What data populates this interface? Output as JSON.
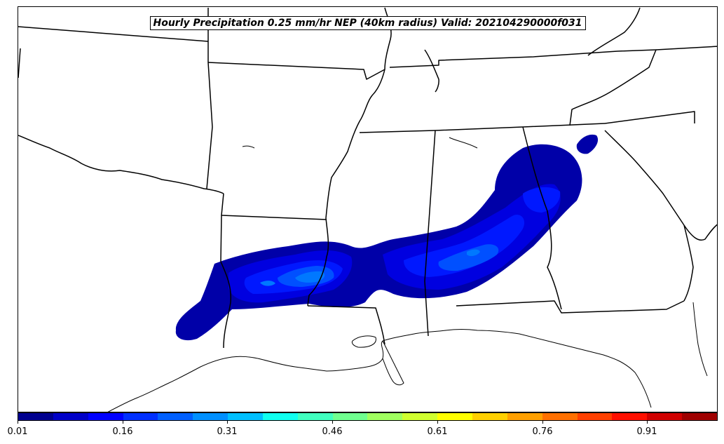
{
  "title": "Hourly Precipitation 0.25 mm/hr NEP (40km radius) Valid: 202104290000f031",
  "colorbar": {
    "colors": [
      "#00008f",
      "#0000c8",
      "#0000ff",
      "#0030ff",
      "#0060ff",
      "#0090ff",
      "#00c0ff",
      "#10ffef",
      "#40ffbf",
      "#70ff8f",
      "#a0ff5f",
      "#d0ff2f",
      "#ffff00",
      "#ffd000",
      "#ffa000",
      "#ff7000",
      "#ff4000",
      "#ff1000",
      "#d00000",
      "#9f0000"
    ],
    "tick_labels": [
      "0.01",
      "0.16",
      "0.31",
      "0.46",
      "0.61",
      "0.76",
      "0.91"
    ],
    "tick_fractions": [
      0.0,
      0.15,
      0.3,
      0.45,
      0.6,
      0.75,
      0.9
    ]
  },
  "precip_levels": {
    "outer": "#0000a8",
    "mid": "#0000e0",
    "inner": "#0018ff",
    "core": "#0050ff",
    "peak": "#0078ff"
  }
}
